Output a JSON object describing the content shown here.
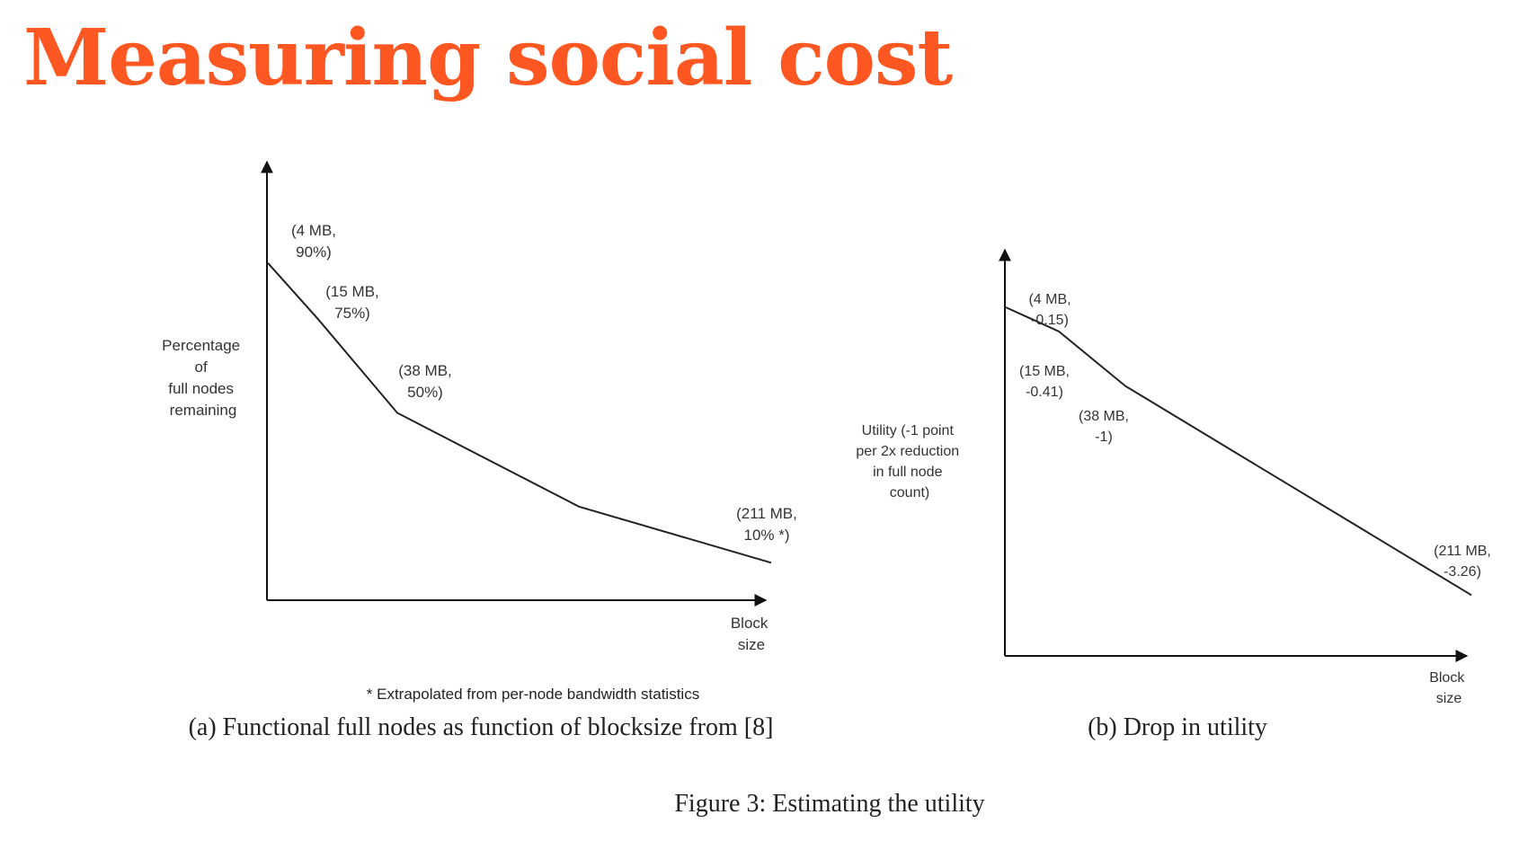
{
  "title": "Measuring social cost",
  "figure_caption": "Figure 3: Estimating the utility",
  "chart_data": [
    {
      "type": "line",
      "caption": "(a) Functional full nodes as function of blocksize from [8]",
      "ylabel": [
        "Percentage",
        "of",
        "full nodes",
        "remaining"
      ],
      "xlabel": [
        "Block",
        "size"
      ],
      "footnote": "* Extrapolated from per-node bandwidth statistics",
      "points": [
        {
          "x": 0,
          "y": 100
        },
        {
          "x": 4,
          "y": 90,
          "label": [
            "(4 MB,",
            "90%)"
          ]
        },
        {
          "x": 15,
          "y": 75,
          "label": [
            "(15 MB,",
            "75%)"
          ]
        },
        {
          "x": 38,
          "y": 50,
          "label": [
            "(38 MB,",
            "50%)"
          ]
        },
        {
          "x": 211,
          "y": 10,
          "label": [
            "(211 MB,",
            "10% *)"
          ]
        }
      ]
    },
    {
      "type": "line",
      "caption": "(b) Drop in utility",
      "ylabel": [
        "Utility (-1 point",
        "per 2x reduction",
        "in full node",
        "count)"
      ],
      "xlabel": [
        "Block",
        "size"
      ],
      "points": [
        {
          "x": 4,
          "y": -0.15,
          "label": [
            "(4 MB,",
            "-0.15)"
          ]
        },
        {
          "x": 15,
          "y": -0.41,
          "label": [
            "(15 MB,",
            "-0.41)"
          ]
        },
        {
          "x": 38,
          "y": -1,
          "label": [
            "(38 MB,",
            "-1)"
          ]
        },
        {
          "x": 211,
          "y": -3.26,
          "label": [
            "(211 MB,",
            "-3.26)"
          ]
        }
      ]
    }
  ]
}
